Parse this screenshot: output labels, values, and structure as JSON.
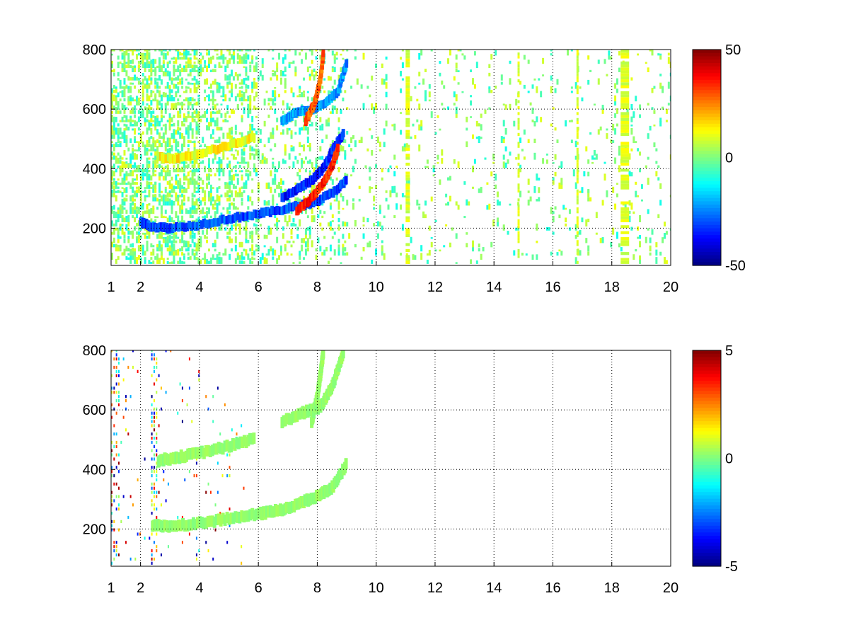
{
  "chart_data": [
    {
      "type": "heatmap",
      "title": "",
      "xlabel": "",
      "ylabel": "",
      "xlim": [
        1,
        20
      ],
      "ylim": [
        75,
        800
      ],
      "x_ticks": [
        1,
        2,
        4,
        6,
        8,
        10,
        12,
        14,
        16,
        18,
        20
      ],
      "y_ticks": [
        200,
        400,
        600,
        800
      ],
      "grid": true,
      "grid_style": "dotted",
      "colormap": "jet",
      "clim": [
        -50,
        50
      ],
      "colorbar_ticks": [
        -50,
        0,
        50
      ],
      "colorbar_tick_labels": [
        "-50",
        "0",
        "50"
      ],
      "features": [
        {
          "name": "lower ridge",
          "points": [
            [
              2.0,
              220
            ],
            [
              2.4,
              205
            ],
            [
              3,
              200
            ],
            [
              4,
              212
            ],
            [
              5,
              232
            ],
            [
              6,
              248
            ],
            [
              6.8,
              262
            ],
            [
              7.5,
              278
            ],
            [
              8,
              292
            ],
            [
              8.5,
              318
            ],
            [
              9.0,
              360
            ]
          ],
          "value": -30
        },
        {
          "name": "lower-left ridge",
          "points": [
            [
              6.8,
              300
            ],
            [
              7.3,
              330
            ],
            [
              7.8,
              360
            ],
            [
              8.2,
              400
            ],
            [
              8.5,
              460
            ],
            [
              8.9,
              520
            ]
          ],
          "value": -35
        },
        {
          "name": "upper ridge",
          "points": [
            [
              2.6,
              440
            ],
            [
              3.2,
              435
            ],
            [
              4,
              450
            ],
            [
              5,
              478
            ],
            [
              5.9,
              505
            ]
          ],
          "value": 12
        },
        {
          "name": "upper-right ridge red",
          "points": [
            [
              7.3,
              260
            ],
            [
              7.8,
              300
            ],
            [
              8.2,
              350
            ],
            [
              8.5,
              410
            ],
            [
              8.7,
              470
            ]
          ],
          "value": 35
        },
        {
          "name": "middle ridge",
          "points": [
            [
              6.8,
              560
            ],
            [
              7.3,
              590
            ],
            [
              7.8,
              600
            ],
            [
              8.3,
              620
            ],
            [
              8.7,
              660
            ],
            [
              9.0,
              760
            ]
          ],
          "value": -22
        },
        {
          "name": "top ridge",
          "points": [
            [
              7.6,
              560
            ],
            [
              7.9,
              620
            ],
            [
              8.1,
              700
            ],
            [
              8.2,
              790
            ]
          ],
          "value": 28
        }
      ]
    },
    {
      "type": "heatmap",
      "title": "",
      "xlabel": "",
      "ylabel": "",
      "xlim": [
        1,
        20
      ],
      "ylim": [
        75,
        800
      ],
      "x_ticks": [
        1,
        2,
        4,
        6,
        8,
        10,
        12,
        14,
        16,
        18,
        20
      ],
      "y_ticks": [
        200,
        400,
        600,
        800
      ],
      "grid": true,
      "grid_style": "dotted",
      "colormap": "jet",
      "clim": [
        -5,
        5
      ],
      "colorbar_ticks": [
        -5,
        0,
        5
      ],
      "colorbar_tick_labels": [
        "-5",
        "0",
        "5"
      ],
      "features": [
        {
          "name": "lower ridge",
          "points": [
            [
              2.4,
              210
            ],
            [
              3,
              210
            ],
            [
              4,
              220
            ],
            [
              5,
              235
            ],
            [
              6,
              250
            ],
            [
              6.8,
              265
            ],
            [
              7.5,
              290
            ],
            [
              8,
              310
            ],
            [
              8.5,
              340
            ],
            [
              9.0,
              420
            ]
          ],
          "value": 0.2
        },
        {
          "name": "upper ridge",
          "points": [
            [
              2.6,
              430
            ],
            [
              3.2,
              440
            ],
            [
              4,
              455
            ],
            [
              5,
              478
            ],
            [
              5.9,
              505
            ]
          ],
          "value": 0.2
        },
        {
          "name": "middle ridge",
          "points": [
            [
              6.8,
              560
            ],
            [
              7.5,
              590
            ],
            [
              8.1,
              610
            ],
            [
              8.5,
              680
            ],
            [
              8.9,
              800
            ]
          ],
          "value": 0.2
        },
        {
          "name": "top ridge",
          "points": [
            [
              7.8,
              560
            ],
            [
              8.0,
              650
            ],
            [
              8.1,
              720
            ],
            [
              8.2,
              800
            ]
          ],
          "value": 0.2
        }
      ]
    }
  ]
}
